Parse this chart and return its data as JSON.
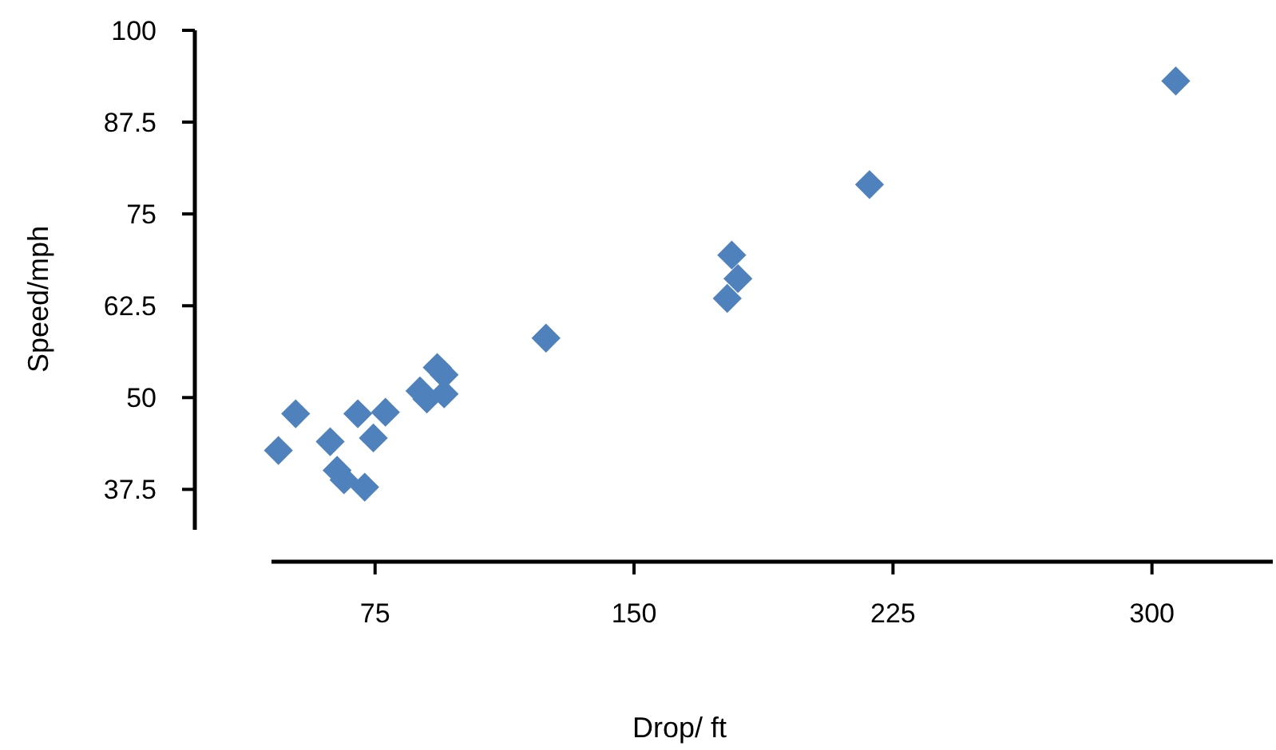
{
  "chart_data": {
    "type": "scatter",
    "xlabel": "Drop/ ft",
    "ylabel": "Speed/mph",
    "marker": "diamond",
    "xlim": [
      45,
      335
    ],
    "xticks": [
      75,
      150,
      225,
      300
    ],
    "ylim": [
      32,
      100
    ],
    "yticks": [
      37.5,
      50,
      62.5,
      75,
      87.5,
      100
    ],
    "series": [
      {
        "color": "#4f81bd",
        "x": [
          47,
          52,
          62,
          64,
          66,
          72,
          70,
          74.5,
          78,
          88,
          90,
          93,
          95,
          95,
          124.5,
          178.3,
          180.1,
          177,
          218.2,
          306.9
        ],
        "values": [
          42.8,
          47.8,
          44,
          40.1,
          38.8,
          37.8,
          47.8,
          44.5,
          48,
          50.9,
          49.8,
          54.1,
          53.1,
          50.5,
          58.1,
          69.4,
          66.2,
          63.5,
          79,
          93.1
        ]
      }
    ]
  }
}
